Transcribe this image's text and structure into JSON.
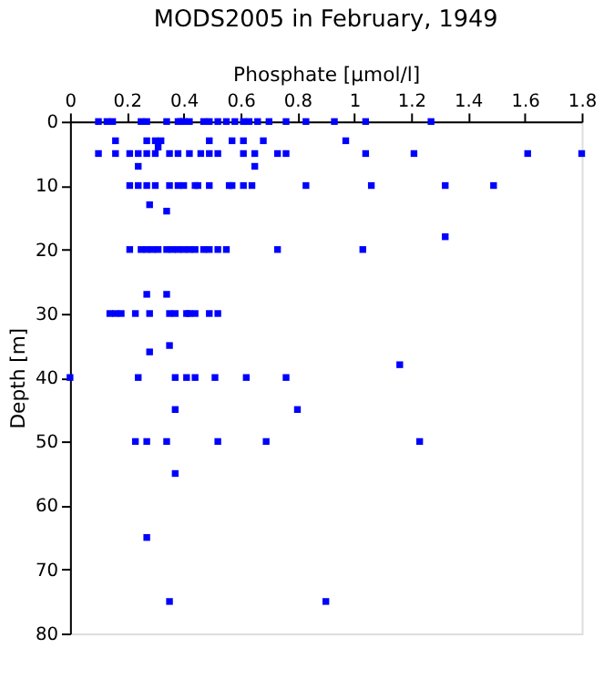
{
  "chart_data": {
    "type": "scatter",
    "title": "MODS2005 in February, 1949",
    "xlabel": "Phosphate [µmol/l]",
    "ylabel": "Depth [m]",
    "x": [
      0.1,
      0.13,
      0.15,
      0.25,
      0.27,
      0.34,
      0.38,
      0.39,
      0.4,
      0.42,
      0.47,
      0.49,
      0.52,
      0.55,
      0.58,
      0.61,
      0.63,
      0.66,
      0.7,
      0.76,
      0.83,
      0.93,
      1.04,
      1.27,
      0.16,
      0.27,
      0.3,
      0.32,
      0.49,
      0.57,
      0.61,
      0.68,
      0.97,
      0.31,
      0.1,
      0.16,
      0.21,
      0.24,
      0.27,
      0.3,
      0.35,
      0.38,
      0.42,
      0.46,
      0.49,
      0.52,
      0.61,
      0.65,
      0.73,
      0.76,
      1.04,
      1.21,
      1.61,
      1.8,
      0.24,
      0.65,
      0.21,
      0.24,
      0.27,
      0.3,
      0.35,
      0.38,
      0.4,
      0.44,
      0.45,
      0.49,
      0.56,
      0.57,
      0.61,
      0.64,
      0.83,
      1.06,
      1.32,
      1.49,
      0.28,
      0.34,
      1.32,
      0.21,
      0.25,
      0.27,
      0.29,
      0.31,
      0.34,
      0.36,
      0.38,
      0.4,
      0.42,
      0.44,
      0.47,
      0.49,
      0.52,
      0.55,
      0.73,
      1.03,
      0.27,
      0.34,
      0.14,
      0.16,
      0.18,
      0.23,
      0.28,
      0.35,
      0.37,
      0.41,
      0.42,
      0.44,
      0.49,
      0.52,
      0.35,
      0.28,
      1.16,
      0.0,
      0.24,
      0.37,
      0.41,
      0.44,
      0.51,
      0.62,
      0.76,
      0.37,
      0.8,
      0.23,
      0.27,
      0.34,
      0.52,
      0.69,
      1.23,
      0.37,
      0.27,
      0.35,
      0.9
    ],
    "values": [
      0,
      0,
      0,
      0,
      0,
      0,
      0,
      0,
      0,
      0,
      0,
      0,
      0,
      0,
      0,
      0,
      0,
      0,
      0,
      0,
      0,
      0,
      0,
      0,
      3,
      3,
      3,
      3,
      3,
      3,
      3,
      3,
      3,
      4,
      5,
      5,
      5,
      5,
      5,
      5,
      5,
      5,
      5,
      5,
      5,
      5,
      5,
      5,
      5,
      5,
      5,
      5,
      5,
      5,
      7,
      7,
      10,
      10,
      10,
      10,
      10,
      10,
      10,
      10,
      10,
      10,
      10,
      10,
      10,
      10,
      10,
      10,
      10,
      10,
      13,
      14,
      18,
      20,
      20,
      20,
      20,
      20,
      20,
      20,
      20,
      20,
      20,
      20,
      20,
      20,
      20,
      20,
      20,
      20,
      27,
      27,
      30,
      30,
      30,
      30,
      30,
      30,
      30,
      30,
      30,
      30,
      30,
      30,
      35,
      36,
      38,
      40,
      40,
      40,
      40,
      40,
      40,
      40,
      40,
      45,
      45,
      50,
      50,
      50,
      50,
      50,
      50,
      55,
      65,
      75,
      75
    ],
    "color": "#0000ff",
    "marker": "square",
    "xlim": [
      0,
      1.8
    ],
    "xticks": [
      0,
      0.2,
      0.4,
      0.6,
      0.8,
      1,
      1.2,
      1.4,
      1.6,
      1.8
    ],
    "ylim": [
      80,
      0
    ],
    "yticks": [
      0,
      10,
      20,
      30,
      40,
      50,
      60,
      70,
      80
    ],
    "grid": false
  }
}
